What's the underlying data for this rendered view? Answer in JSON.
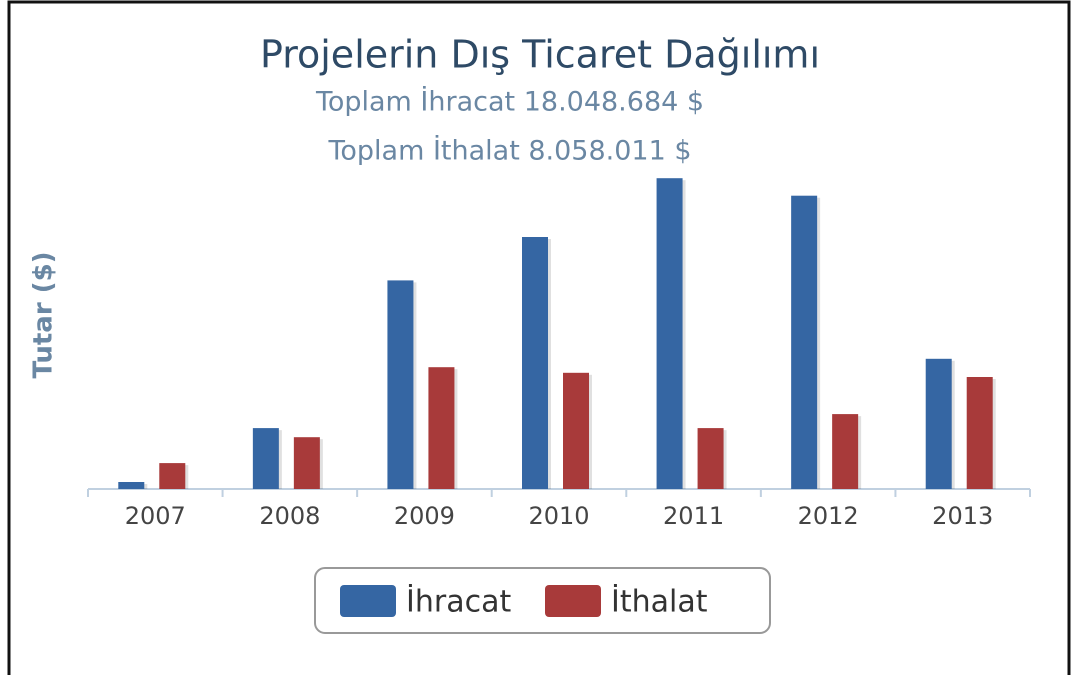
{
  "chart_data": {
    "type": "bar",
    "title": "Projelerin Dış Ticaret Dağılımı",
    "subtitles": [
      "Toplam İhracat 18.048.684 $",
      "Toplam İthalat 8.058.011 $"
    ],
    "y_label": "Tutar ($)",
    "categories": [
      "2007",
      "2008",
      "2009",
      "2010",
      "2011",
      "2012",
      "2013"
    ],
    "series": [
      {
        "name": "İhracat",
        "color": "#3566a3",
        "values": [
          100000,
          870000,
          2980000,
          3600000,
          4440000,
          4190000,
          1860000
        ]
      },
      {
        "name": "İthalat",
        "color": "#a83a3a",
        "values": [
          370000,
          740000,
          1740000,
          1660000,
          870000,
          1070000,
          1600000
        ]
      }
    ],
    "ylim": [
      0,
      4500000
    ],
    "legend": "bottom"
  }
}
